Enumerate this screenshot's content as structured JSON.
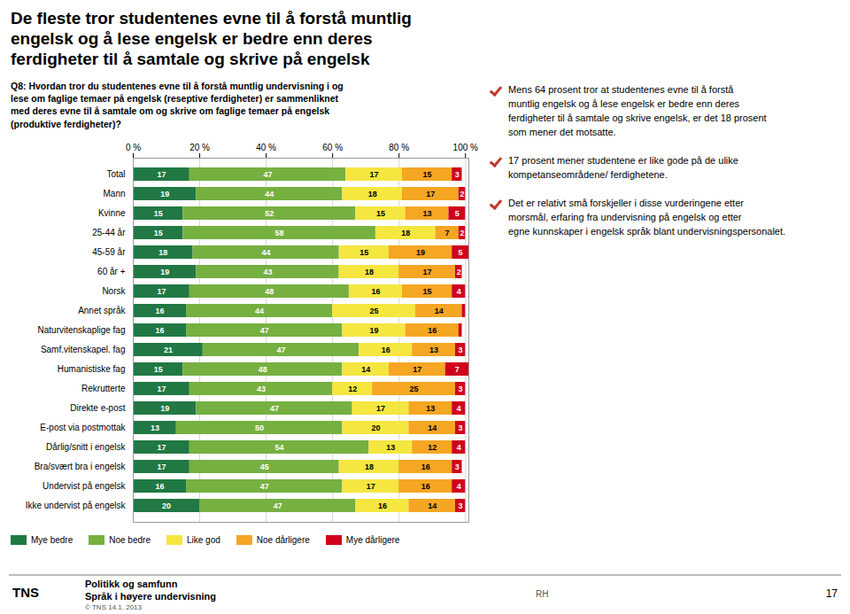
{
  "chart_data": {
    "type": "bar",
    "orientation": "horizontal",
    "stacked": true,
    "title": "De fleste tror studentenes evne til å forstå muntlig\nengelsk og å lese engelsk er bedre enn deres\nferdigheter til å samtale og skrive på engelsk",
    "subtitle": "Q8: Hvordan tror du studentenes evne til å forstå muntlig undervisning i og\nlese om faglige temaer på engelsk (reseptive ferdigheter) er sammenliknet\nmed deres evne til å samtale om og skrive om faglige temaer på engelsk\n(produktive ferdigheter)?",
    "categories": [
      "Total",
      "Mann",
      "Kvinne",
      "25-44 år",
      "45-59 år",
      "60 år +",
      "Norsk",
      "Annet språk",
      "Naturvitenskaplige fag",
      "Samf.vitenskapel. fag",
      "Humanistiske fag",
      "Rekrutterte",
      "Direkte e-post",
      "E-post via postmottak",
      "Dårlig/snitt i engelsk",
      "Bra/svært bra i engelsk",
      "Undervist på engelsk",
      "Ikke undervist på engelsk"
    ],
    "series": [
      {
        "name": "Mye bedre",
        "color": "#217844",
        "values": [
          17,
          19,
          15,
          15,
          18,
          19,
          17,
          16,
          16,
          21,
          15,
          17,
          19,
          13,
          17,
          17,
          16,
          20
        ]
      },
      {
        "name": "Noe bedre",
        "color": "#76b041",
        "values": [
          47,
          44,
          52,
          58,
          44,
          43,
          48,
          44,
          47,
          47,
          48,
          43,
          47,
          50,
          54,
          45,
          47,
          47
        ]
      },
      {
        "name": "Like god",
        "color": "#f5e640",
        "values": [
          17,
          18,
          15,
          18,
          15,
          18,
          16,
          25,
          19,
          16,
          14,
          12,
          17,
          20,
          13,
          18,
          17,
          16
        ]
      },
      {
        "name": "Noe dårligere",
        "color": "#f5a623",
        "values": [
          15,
          17,
          13,
          7,
          19,
          17,
          15,
          14,
          16,
          13,
          17,
          25,
          13,
          14,
          12,
          16,
          16,
          14
        ]
      },
      {
        "name": "Mye dårligere",
        "color": "#d0021b",
        "values": [
          3,
          2,
          5,
          2,
          5,
          2,
          4,
          1,
          1,
          3,
          7,
          3,
          4,
          3,
          4,
          3,
          4,
          3
        ],
        "value_labels": [
          "3",
          "2",
          "5",
          "2",
          "5",
          "2",
          "4",
          null,
          null,
          "3",
          "7",
          "3",
          "4",
          "3",
          "4",
          "3",
          "4",
          "3"
        ]
      }
    ],
    "xlim": [
      0,
      101
    ],
    "xticks": [
      {
        "value": 0,
        "label": "0 %"
      },
      {
        "value": 20,
        "label": "20 %"
      },
      {
        "value": 40,
        "label": "40 %"
      },
      {
        "value": 60,
        "label": "60 %"
      },
      {
        "value": 80,
        "label": "80 %"
      },
      {
        "value": 100,
        "label": "100 %"
      }
    ],
    "grid": true,
    "data_labels": true,
    "legend": "bottom",
    "annotations": [
      "Mens 64 prosent tror at studentenes evne til å forstå\nmuntlig engelsk og å lese engelsk er bedre enn deres\nferdigheter til å samtale og skrive engelsk, er det 18 prosent\nsom mener det motsatte.",
      "17 prosent mener studentene er like gode på de ulike\nkompetanseområdene/ ferdighetene.",
      "Det er relativt små forskjeller i disse vurderingene etter\nmorsmål, erfaring fra undervisning på engelsk og etter\negne kunnskaper i engelsk språk blant undervisningspersonalet.",
      "TNS",
      "Politikk og samfunn",
      "Språk i høyere undervisning",
      "© TNS   14.1. 2013",
      "RH",
      "17"
    ]
  }
}
